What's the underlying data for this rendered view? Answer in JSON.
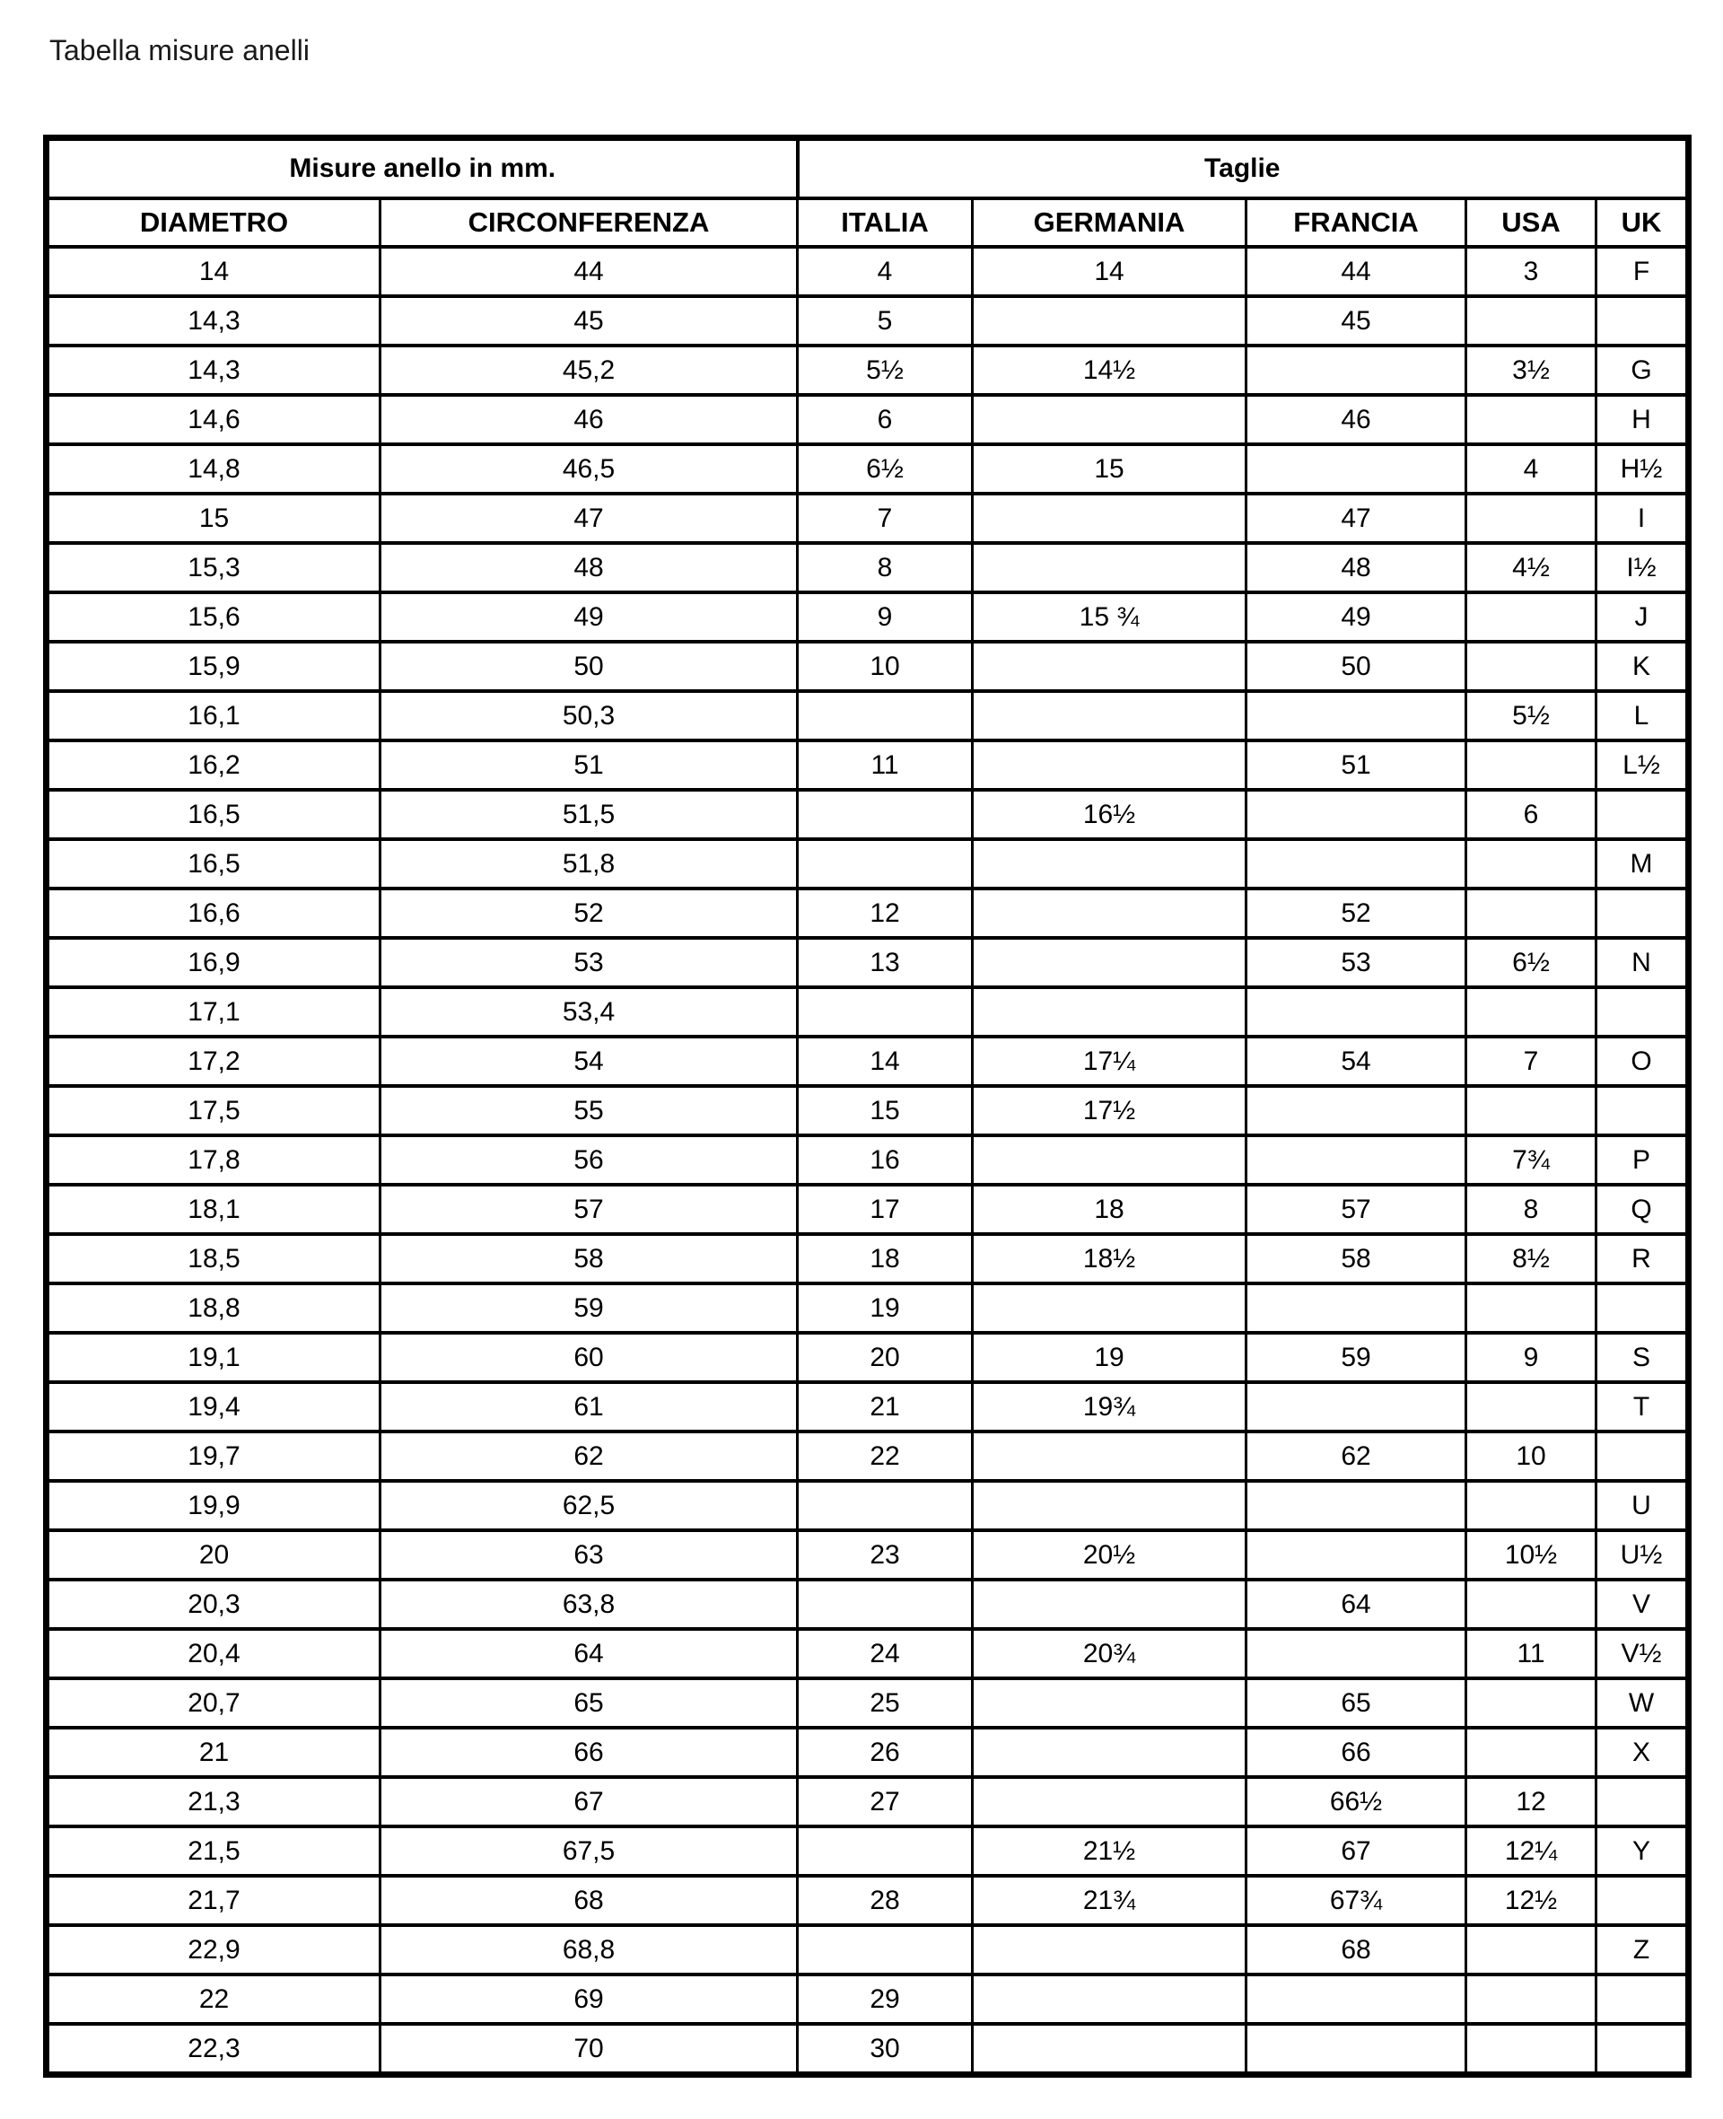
{
  "page": {
    "title": "Tabella misure anelli"
  },
  "colors": {
    "background": "#ffffff",
    "border": "#000000",
    "text": "#000000"
  },
  "table": {
    "group_headers": [
      {
        "label": "Misure anello in mm.",
        "colspan": 2
      },
      {
        "label": "Taglie",
        "colspan": 5
      }
    ],
    "columns": [
      "DIAMETRO",
      "CIRCONFERENZA",
      "ITALIA",
      "GERMANIA",
      "FRANCIA",
      "USA",
      "UK"
    ],
    "rows": [
      [
        "14",
        "44",
        "4",
        "14",
        "44",
        "3",
        "F"
      ],
      [
        "14,3",
        "45",
        "5",
        "",
        "45",
        "",
        ""
      ],
      [
        "14,3",
        "45,2",
        "5½",
        "14½",
        "",
        "3½",
        "G"
      ],
      [
        "14,6",
        "46",
        "6",
        "",
        "46",
        "",
        "H"
      ],
      [
        "14,8",
        "46,5",
        "6½",
        "15",
        "",
        "4",
        "H½"
      ],
      [
        "15",
        "47",
        "7",
        "",
        "47",
        "",
        "I"
      ],
      [
        "15,3",
        "48",
        "8",
        "",
        "48",
        "4½",
        "I½"
      ],
      [
        "15,6",
        "49",
        "9",
        "15 ¾",
        "49",
        "",
        "J"
      ],
      [
        "15,9",
        "50",
        "10",
        "",
        "50",
        "",
        "K"
      ],
      [
        "16,1",
        "50,3",
        "",
        "",
        "",
        "5½",
        "L"
      ],
      [
        "16,2",
        "51",
        "11",
        "",
        "51",
        "",
        "L½"
      ],
      [
        "16,5",
        "51,5",
        "",
        "16½",
        "",
        "6",
        ""
      ],
      [
        "16,5",
        "51,8",
        "",
        "",
        "",
        "",
        "M"
      ],
      [
        "16,6",
        "52",
        "12",
        "",
        "52",
        "",
        ""
      ],
      [
        "16,9",
        "53",
        "13",
        "",
        "53",
        "6½",
        "N"
      ],
      [
        "17,1",
        "53,4",
        "",
        "",
        "",
        "",
        ""
      ],
      [
        "17,2",
        "54",
        "14",
        "17¼",
        "54",
        "7",
        "O"
      ],
      [
        "17,5",
        "55",
        "15",
        "17½",
        "",
        "",
        ""
      ],
      [
        "17,8",
        "56",
        "16",
        "",
        "",
        "7¾",
        "P"
      ],
      [
        "18,1",
        "57",
        "17",
        "18",
        "57",
        "8",
        "Q"
      ],
      [
        "18,5",
        "58",
        "18",
        "18½",
        "58",
        "8½",
        "R"
      ],
      [
        "18,8",
        "59",
        "19",
        "",
        "",
        "",
        ""
      ],
      [
        "19,1",
        "60",
        "20",
        "19",
        "59",
        "9",
        "S"
      ],
      [
        "19,4",
        "61",
        "21",
        "19¾",
        "",
        "",
        "T"
      ],
      [
        "19,7",
        "62",
        "22",
        "",
        "62",
        "10",
        ""
      ],
      [
        "19,9",
        "62,5",
        "",
        "",
        "",
        "",
        "U"
      ],
      [
        "20",
        "63",
        "23",
        "20½",
        "",
        "10½",
        "U½"
      ],
      [
        "20,3",
        "63,8",
        "",
        "",
        "64",
        "",
        "V"
      ],
      [
        "20,4",
        "64",
        "24",
        "20¾",
        "",
        "11",
        "V½"
      ],
      [
        "20,7",
        "65",
        "25",
        "",
        "65",
        "",
        "W"
      ],
      [
        "21",
        "66",
        "26",
        "",
        "66",
        "",
        "X"
      ],
      [
        "21,3",
        "67",
        "27",
        "",
        "66½",
        "12",
        ""
      ],
      [
        "21,5",
        "67,5",
        "",
        "21½",
        "67",
        "12¼",
        "Y"
      ],
      [
        "21,7",
        "68",
        "28",
        "21¾",
        "67¾",
        "12½",
        ""
      ],
      [
        "22,9",
        "68,8",
        "",
        "",
        "68",
        "",
        "Z"
      ],
      [
        "22",
        "69",
        "29",
        "",
        "",
        "",
        ""
      ],
      [
        "22,3",
        "70",
        "30",
        "",
        "",
        "",
        ""
      ]
    ]
  }
}
